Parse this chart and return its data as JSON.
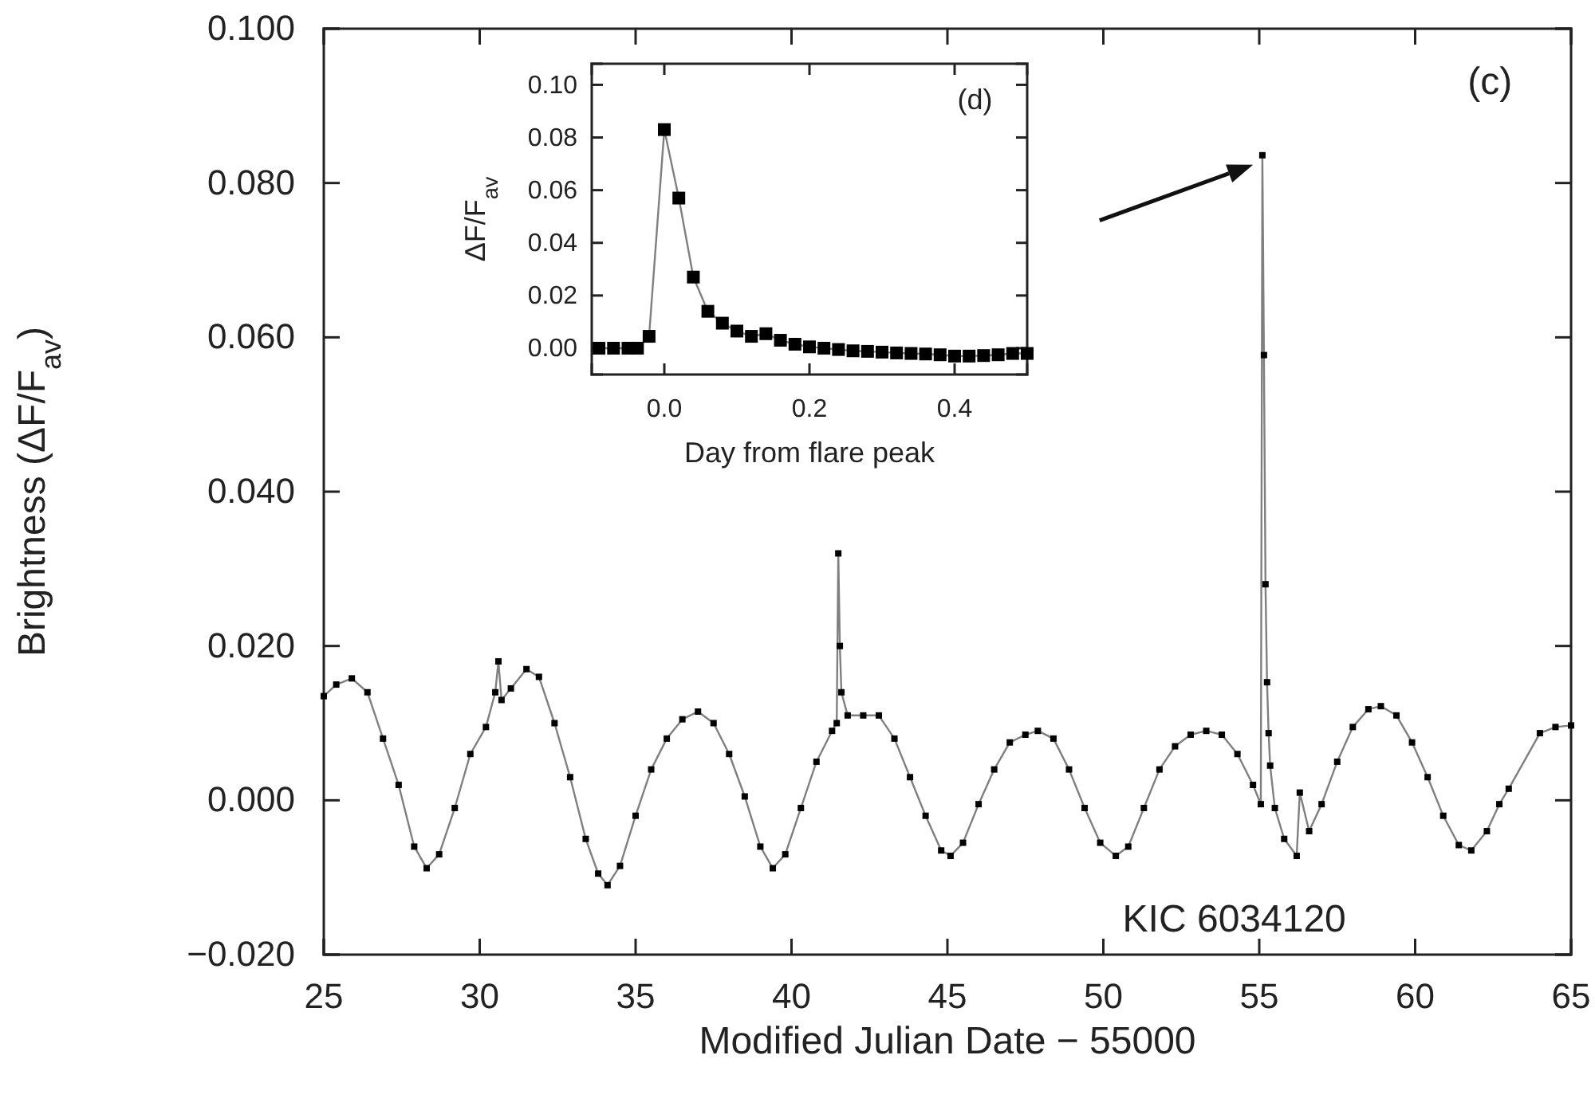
{
  "chart_data": [
    {
      "type": "line",
      "xlabel": "Modified Julian Date − 55000",
      "ylabel": "Brightness (ΔF/F$_{av}$)",
      "annotations": [
        "(c)",
        "KIC 6034120"
      ],
      "xlim": [
        25,
        65
      ],
      "ylim": [
        -0.02,
        0.1
      ],
      "xticks": [
        25,
        30,
        35,
        40,
        45,
        50,
        55,
        60,
        65
      ],
      "yticks": [
        {
          "value": -0.02,
          "label": "−0.020"
        },
        {
          "value": 0,
          "label": "0.000"
        },
        {
          "value": 0.02,
          "label": "0.020"
        },
        {
          "value": 0.04,
          "label": "0.040"
        },
        {
          "value": 0.06,
          "label": "0.060"
        },
        {
          "value": 0.08,
          "label": "0.080"
        },
        {
          "value": 0.1,
          "label": "0.100"
        }
      ],
      "marker": "square",
      "color": "#000000",
      "x": [
        25.0,
        25.4,
        25.9,
        26.4,
        26.9,
        27.4,
        27.9,
        28.3,
        28.7,
        29.2,
        29.7,
        30.2,
        30.5,
        30.6,
        30.7,
        31.0,
        31.5,
        31.9,
        32.4,
        32.9,
        33.4,
        33.8,
        34.1,
        34.5,
        35.0,
        35.5,
        36.0,
        36.5,
        37.0,
        37.5,
        38.0,
        38.5,
        39.0,
        39.4,
        39.8,
        40.3,
        40.8,
        41.3,
        41.45,
        41.5,
        41.55,
        41.6,
        41.8,
        42.3,
        42.8,
        43.3,
        43.8,
        44.3,
        44.8,
        45.1,
        45.5,
        46.0,
        46.5,
        47.0,
        47.5,
        47.9,
        48.4,
        48.9,
        49.4,
        49.9,
        50.4,
        50.8,
        51.3,
        51.8,
        52.3,
        52.8,
        53.3,
        53.8,
        54.3,
        54.8,
        55.05,
        55.1,
        55.15,
        55.2,
        55.25,
        55.3,
        55.35,
        55.5,
        55.8,
        56.2,
        56.3,
        56.6,
        57.0,
        57.5,
        58.0,
        58.5,
        58.9,
        59.4,
        59.9,
        60.4,
        60.9,
        61.4,
        61.8,
        62.3,
        62.7,
        63.0,
        64.0,
        64.5,
        65.0
      ],
      "values": [
        0.0135,
        0.015,
        0.0158,
        0.014,
        0.008,
        0.002,
        -0.006,
        -0.0088,
        -0.007,
        -0.001,
        0.006,
        0.0095,
        0.014,
        0.018,
        0.013,
        0.0145,
        0.017,
        0.016,
        0.01,
        0.003,
        -0.005,
        -0.0095,
        -0.011,
        -0.0085,
        -0.002,
        0.004,
        0.008,
        0.0105,
        0.0115,
        0.01,
        0.006,
        0.0005,
        -0.006,
        -0.0088,
        -0.007,
        -0.001,
        0.005,
        0.009,
        0.01,
        0.032,
        0.02,
        0.014,
        0.011,
        0.011,
        0.011,
        0.008,
        0.003,
        -0.002,
        -0.0065,
        -0.0072,
        -0.0055,
        -0.0005,
        0.004,
        0.0075,
        0.0085,
        0.009,
        0.008,
        0.004,
        -0.001,
        -0.0055,
        -0.0072,
        -0.006,
        -0.001,
        0.004,
        0.007,
        0.0085,
        0.009,
        0.0085,
        0.006,
        0.002,
        -0.0005,
        0.0836,
        0.0577,
        0.028,
        0.0153,
        0.0087,
        0.0045,
        -0.001,
        -0.005,
        -0.0072,
        0.001,
        -0.004,
        -0.0005,
        0.005,
        0.0095,
        0.0118,
        0.0122,
        0.011,
        0.0075,
        0.003,
        -0.002,
        -0.0058,
        -0.0065,
        -0.004,
        -0.0005,
        0.0015,
        0.0087,
        0.0095,
        0.0097
      ]
    },
    {
      "type": "line",
      "xlabel": "Day from flare peak",
      "ylabel": "ΔF/F$_{av}$",
      "annotations": [
        "(d)"
      ],
      "xlim": [
        -0.1,
        0.5
      ],
      "ylim": [
        -0.01,
        0.108
      ],
      "xticks": [
        {
          "value": 0,
          "label": "0.0"
        },
        0.2,
        0.4
      ],
      "yticks": [
        {
          "value": 0,
          "label": "0.00"
        },
        {
          "value": 0.02,
          "label": "0.02"
        },
        {
          "value": 0.04,
          "label": "0.04"
        },
        {
          "value": 0.06,
          "label": "0.06"
        },
        {
          "value": 0.08,
          "label": "0.08"
        },
        {
          "value": 0.1,
          "label": "0.10"
        }
      ],
      "marker": "square",
      "color": "#000000",
      "x": [
        -0.09,
        -0.07,
        -0.05,
        -0.037,
        -0.021,
        0.0,
        0.02,
        0.04,
        0.06,
        0.08,
        0.1,
        0.12,
        0.14,
        0.16,
        0.18,
        0.2,
        0.22,
        0.24,
        0.26,
        0.28,
        0.3,
        0.32,
        0.34,
        0.36,
        0.38,
        0.4,
        0.42,
        0.44,
        0.46,
        0.48,
        0.5
      ],
      "values": [
        0.0,
        0.0,
        0.0,
        0.0,
        0.0045,
        0.083,
        0.057,
        0.027,
        0.014,
        0.0095,
        0.0065,
        0.0045,
        0.0055,
        0.003,
        0.0015,
        0.0005,
        0.0,
        -0.0005,
        -0.001,
        -0.0012,
        -0.0015,
        -0.0018,
        -0.002,
        -0.0022,
        -0.0025,
        -0.003,
        -0.003,
        -0.0028,
        -0.0025,
        -0.002,
        -0.002
      ]
    }
  ]
}
